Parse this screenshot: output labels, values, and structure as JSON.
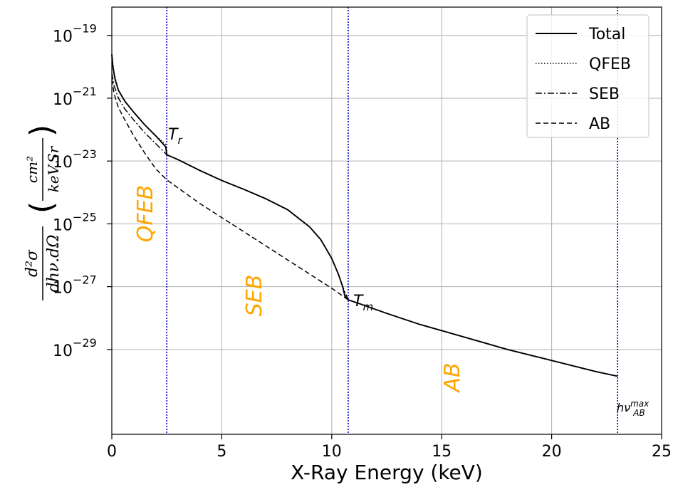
{
  "chart_data": {
    "type": "line",
    "xlabel": "X-Ray Energy (keV)",
    "ylabel_parts": {
      "numerator": "d²σ",
      "denominator": "dhν.dΩ",
      "unit_numerator": "cm²",
      "unit_denominator": "keV.Sr"
    },
    "xlim": [
      0,
      25
    ],
    "ylim_log10": [
      -31.7,
      -18.1
    ],
    "y_scale": "log",
    "grid": true,
    "legend_placement": "top-right",
    "xticks": [
      {
        "value": 0,
        "label": "0"
      },
      {
        "value": 5,
        "label": "5"
      },
      {
        "value": 10,
        "label": "10"
      },
      {
        "value": 15,
        "label": "15"
      },
      {
        "value": 20,
        "label": "20"
      },
      {
        "value": 25,
        "label": "25"
      }
    ],
    "yticks": [
      {
        "exp": -19,
        "base": "10",
        "label": "−19"
      },
      {
        "exp": -21,
        "base": "10",
        "label": "−21"
      },
      {
        "exp": -23,
        "base": "10",
        "label": "−23"
      },
      {
        "exp": -25,
        "base": "10",
        "label": "−25"
      },
      {
        "exp": -27,
        "base": "10",
        "label": "−27"
      },
      {
        "exp": -29,
        "base": "10",
        "label": "−29"
      }
    ],
    "vlines": [
      2.5,
      10.75,
      23.0
    ],
    "series": [
      {
        "name": "Total",
        "dash": "solid",
        "x": [
          0,
          0.05,
          0.15,
          0.3,
          0.6,
          1.0,
          1.5,
          2.0,
          2.45,
          2.5,
          3.0,
          4.0,
          5.0,
          6.0,
          7.0,
          8.0,
          9.0,
          9.5,
          10.0,
          10.3,
          10.5,
          10.6,
          10.75,
          11.5,
          12.5,
          14.0,
          16.0,
          18.0,
          20.0,
          22.0,
          23.0
        ],
        "log10y": [
          -19.6,
          -20.0,
          -20.4,
          -20.75,
          -21.1,
          -21.45,
          -21.85,
          -22.2,
          -22.55,
          -22.8,
          -22.95,
          -23.3,
          -23.62,
          -23.9,
          -24.2,
          -24.55,
          -25.1,
          -25.5,
          -26.1,
          -26.6,
          -27.0,
          -27.3,
          -27.42,
          -27.6,
          -27.85,
          -28.2,
          -28.6,
          -29.0,
          -29.35,
          -29.7,
          -29.85
        ]
      },
      {
        "name": "QFEB",
        "dash": "dotted",
        "x": [
          0,
          0.1,
          0.3,
          0.6,
          1.0,
          1.5,
          2.0,
          2.5
        ],
        "log10y": [
          -19.6,
          -20.2,
          -20.75,
          -21.1,
          -21.45,
          -21.85,
          -22.2,
          -22.5
        ]
      },
      {
        "name": "SEB",
        "dash": "dashdot",
        "x": [
          0,
          0.1,
          0.3,
          0.6,
          1.0,
          1.5,
          2.0,
          2.5,
          3.0,
          4.0,
          5.0,
          6.0,
          7.0,
          8.0,
          9.0,
          9.5,
          10.0,
          10.3,
          10.5,
          10.75
        ],
        "log10y": [
          -20.2,
          -20.6,
          -21.0,
          -21.35,
          -21.7,
          -22.1,
          -22.45,
          -22.8,
          -22.95,
          -23.3,
          -23.62,
          -23.9,
          -24.2,
          -24.55,
          -25.1,
          -25.5,
          -26.1,
          -26.6,
          -27.0,
          -27.42
        ]
      },
      {
        "name": "AB",
        "dash": "dashed",
        "x": [
          0,
          0.1,
          0.3,
          0.6,
          1.0,
          1.5,
          2.0,
          2.5,
          3.0,
          4.0,
          5.0,
          6.0,
          7.0,
          8.0,
          9.0,
          10.0,
          10.75
        ],
        "log10y": [
          -20.4,
          -20.85,
          -21.3,
          -21.7,
          -22.2,
          -22.75,
          -23.25,
          -23.6,
          -23.85,
          -24.35,
          -24.8,
          -25.25,
          -25.7,
          -26.15,
          -26.6,
          -27.05,
          -27.42
        ]
      }
    ],
    "annotations": {
      "tr": {
        "base": "T",
        "sub": "r"
      },
      "tm": {
        "base": "T",
        "sub": "m"
      },
      "hnu": {
        "base": "hν",
        "sub": "AB",
        "sup": "max"
      }
    },
    "region_labels": [
      {
        "text": "QFEB"
      },
      {
        "text": "SEB"
      },
      {
        "text": "AB"
      }
    ],
    "colors": {
      "region_text": "#FFA500",
      "vline": "#0000CC",
      "line": "#000000",
      "grid": "#b0b0b0"
    }
  }
}
